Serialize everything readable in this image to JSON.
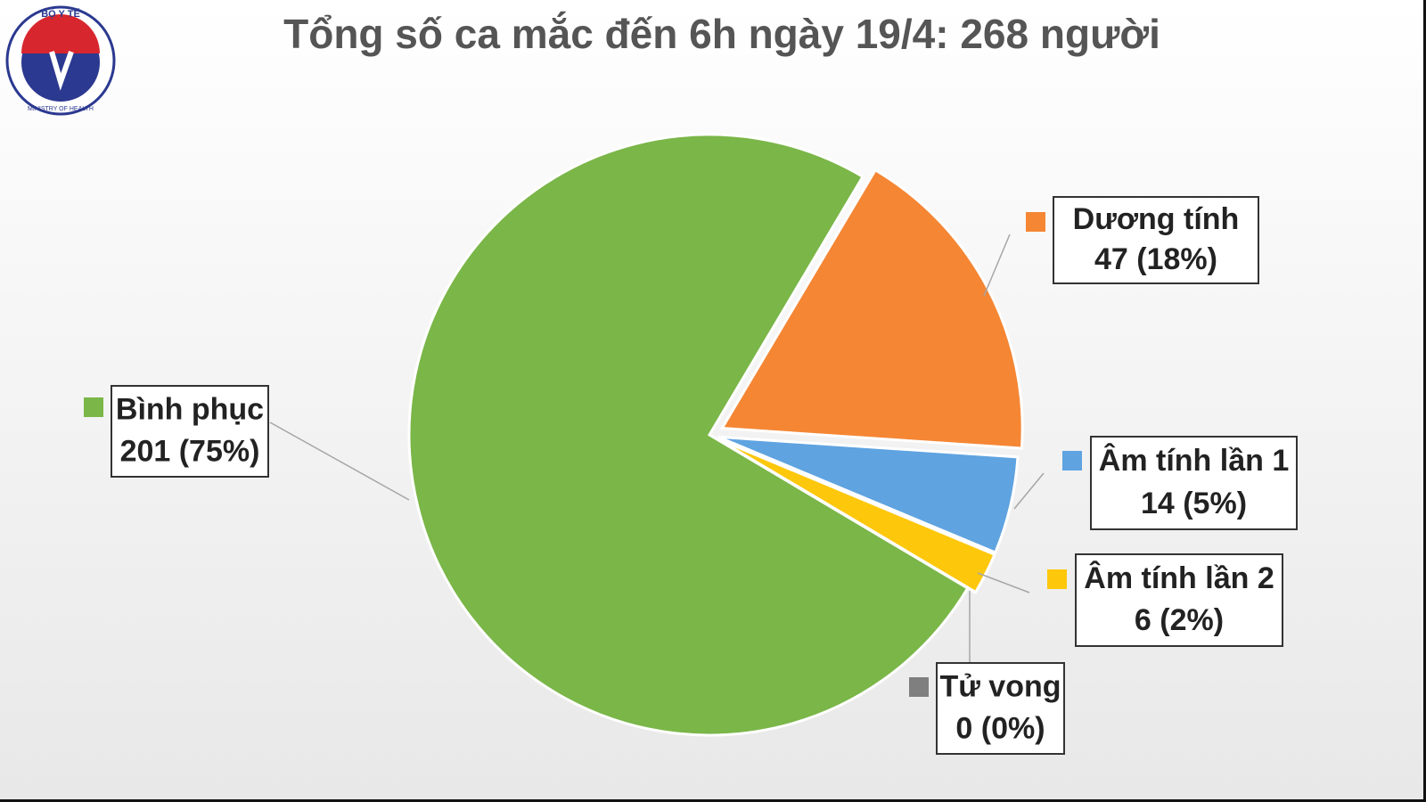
{
  "logo": {
    "top": "BỘ Y TẾ",
    "bottom": "MINISTRY OF HEALTH"
  },
  "chart_data": {
    "type": "pie",
    "title": "Tổng số ca mắc đến 6h ngày 19/4: 268 người",
    "categories": [
      "Dương tính",
      "Âm tính lần 1",
      "Âm tính lần 2",
      "Tử vong",
      "Bình phục"
    ],
    "values": [
      47,
      14,
      6,
      0,
      201
    ],
    "value_labels": [
      "47 (18%)",
      "14 (5%)",
      "6 (2%)",
      "0 (0%)",
      "201 (75%)"
    ],
    "colors": [
      "#f58634",
      "#5fa3e0",
      "#fdc70c",
      "#7f7f7f",
      "#7ab648"
    ]
  }
}
